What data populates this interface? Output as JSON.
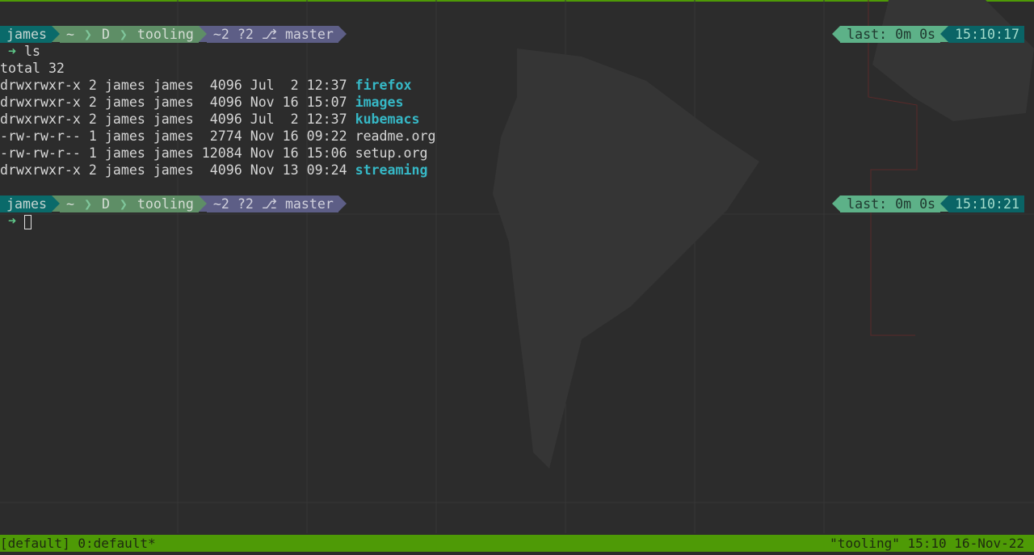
{
  "prompts": [
    {
      "user": "james",
      "path": [
        "~",
        "D",
        "tooling"
      ],
      "git_status": "~2 ?2",
      "branch_icon": "git-branch-icon",
      "branch": "master",
      "last": "last: 0m 0s",
      "time": "15:10:17",
      "command": "ls"
    },
    {
      "user": "james",
      "path": [
        "~",
        "D",
        "tooling"
      ],
      "git_status": "~2 ?2",
      "branch_icon": "git-branch-icon",
      "branch": "master",
      "last": "last: 0m 0s",
      "time": "15:10:21",
      "command": ""
    }
  ],
  "prompt_symbol": "➜",
  "output": {
    "total": "total 32",
    "rows": [
      {
        "meta": "drwxrwxr-x 2 james james  4096 Jul  2 12:37 ",
        "name": "firefox",
        "dir": true
      },
      {
        "meta": "drwxrwxr-x 2 james james  4096 Nov 16 15:07 ",
        "name": "images",
        "dir": true
      },
      {
        "meta": "drwxrwxr-x 2 james james  4096 Jul  2 12:37 ",
        "name": "kubemacs",
        "dir": true
      },
      {
        "meta": "-rw-rw-r-- 1 james james  2774 Nov 16 09:22 ",
        "name": "readme.org",
        "dir": false
      },
      {
        "meta": "-rw-rw-r-- 1 james james 12084 Nov 16 15:06 ",
        "name": "setup.org",
        "dir": false
      },
      {
        "meta": "drwxrwxr-x 2 james james  4096 Nov 13 09:24 ",
        "name": "streaming",
        "dir": true
      }
    ]
  },
  "statusbar": {
    "left": "[default] 0:default*",
    "right": "\"tooling\" 15:10 16-Nov-22"
  },
  "colors": {
    "status_bg": "#4e9a06",
    "dir": "#36b8c6",
    "user_bg": "#0a6a6a",
    "path_bg": "#5e8e66",
    "git_bg": "#5d5e86"
  }
}
